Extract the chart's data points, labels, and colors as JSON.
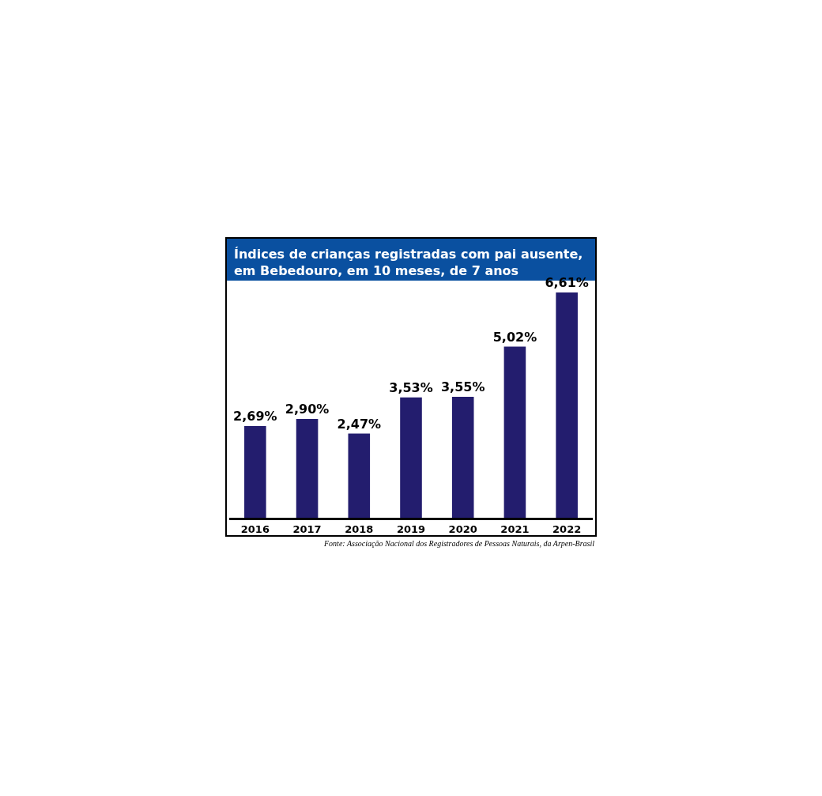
{
  "chart_data": {
    "type": "bar",
    "title": "Índices de crianças registradas com pai ausente, em Bebedouro, em 10 meses, de 7 anos",
    "categories": [
      "2016",
      "2017",
      "2018",
      "2019",
      "2020",
      "2021",
      "2022"
    ],
    "values": [
      2.69,
      2.9,
      2.47,
      3.53,
      3.55,
      5.02,
      6.61
    ],
    "value_labels": [
      "2,69%",
      "2,90%",
      "2,47%",
      "3,53%",
      "3,55%",
      "5,02%",
      "6,61%"
    ],
    "color": "#231d6e",
    "tick_labels": "x",
    "legend": false,
    "annotations": [
      "Fonte: Associação Nacional dos Registradores de Pessoas Naturais, da Arpen-Brasil"
    ]
  }
}
